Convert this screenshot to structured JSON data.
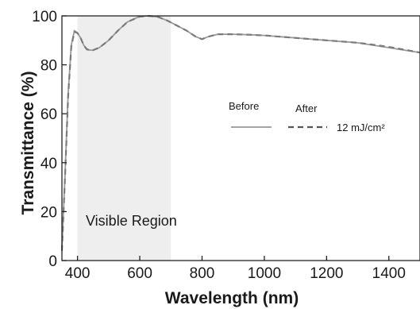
{
  "chart_data": {
    "type": "line",
    "xlabel": "Wavelength (nm)",
    "ylabel": "Transmittance (%)",
    "xlim": [
      350,
      1500
    ],
    "ylim": [
      0,
      100
    ],
    "x_ticks": [
      400,
      600,
      800,
      1000,
      1200,
      1400
    ],
    "x_tick_labels": [
      "400",
      "600",
      "800",
      "1000",
      "1200",
      "1400"
    ],
    "y_ticks": [
      0,
      20,
      40,
      60,
      80,
      100
    ],
    "y_tick_labels": [
      "0",
      "20",
      "40",
      "60",
      "80",
      "100"
    ],
    "grid": false,
    "shaded_region": {
      "label": "Visible Region",
      "x_range": [
        400,
        700
      ],
      "color": "#eeeeee"
    },
    "legend": {
      "placement": "center-right",
      "header_before": "Before",
      "header_after": "After",
      "after_note": "12 mJ/cm²"
    },
    "series": [
      {
        "name": "Before",
        "style": "solid",
        "color": "#9a9a9a",
        "x": [
          350,
          360,
          370,
          380,
          390,
          400,
          410,
          420,
          430,
          440,
          450,
          470,
          500,
          530,
          560,
          600,
          630,
          660,
          690,
          720,
          750,
          780,
          800,
          820,
          850,
          900,
          950,
          1000,
          1050,
          1100,
          1150,
          1200,
          1250,
          1300,
          1350,
          1400,
          1450,
          1500
        ],
        "y": [
          5,
          35,
          68,
          88,
          94,
          93,
          91,
          88,
          86.5,
          86,
          86,
          87,
          90,
          94,
          97.5,
          99.8,
          100,
          99.5,
          98,
          96,
          94,
          91.5,
          90.5,
          91.5,
          92.5,
          92.5,
          92.3,
          92,
          91.5,
          91,
          90.5,
          90,
          89.5,
          89,
          88,
          87,
          86,
          85
        ]
      },
      {
        "name": "After",
        "style": "dashed",
        "color": "#7a7a7a",
        "x": [
          350,
          360,
          370,
          380,
          390,
          400,
          410,
          420,
          430,
          440,
          450,
          470,
          500,
          530,
          560,
          600,
          630,
          660,
          690,
          720,
          750,
          780,
          800,
          820,
          850,
          900,
          950,
          1000,
          1050,
          1100,
          1150,
          1200,
          1250,
          1300,
          1350,
          1400,
          1450,
          1500
        ],
        "y": [
          4,
          34,
          67,
          87.5,
          93.5,
          93,
          91,
          88,
          86.3,
          86,
          86,
          87,
          90,
          94,
          97.5,
          99.7,
          100,
          99.5,
          98,
          96,
          94,
          91.5,
          90.5,
          91.5,
          92.5,
          92.5,
          92.3,
          92,
          91.5,
          91,
          90.5,
          90,
          89.5,
          89,
          88.2,
          87.3,
          86.2,
          85
        ]
      }
    ]
  }
}
